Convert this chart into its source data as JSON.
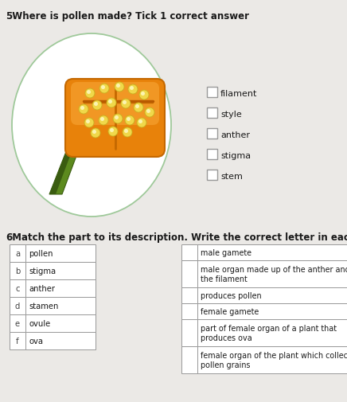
{
  "page_bg": "#ebe9e6",
  "q5_number": "5",
  "q5_text": "  Where is pollen made? Tick 1 correct answer",
  "q5_options": [
    "filament",
    "style",
    "anther",
    "stigma",
    "stem"
  ],
  "q6_number": "6",
  "q6_text": "  Match the part to its description. Write the correct letter in each box",
  "q6_left_labels": [
    "a",
    "b",
    "c",
    "d",
    "e",
    "f"
  ],
  "q6_left_items": [
    "pollen",
    "stigma",
    "anther",
    "stamen",
    "ovule",
    "ova"
  ],
  "q6_right_items": [
    "male gamete",
    "male organ made up of the anther and\nthe filament",
    "produces pollen",
    "female gamete",
    "part of female organ of a plant that\nproduces ova",
    "female organ of the plant which collects\npollen grains"
  ],
  "circle_edge_color": "#9fc99a",
  "anther_orange": "#e8820a",
  "anther_dark": "#c46800",
  "anther_light": "#f5a030",
  "anther_top_dark": "#b85a00",
  "pollen_yellow": "#f0d84a",
  "pollen_yellow2": "#c8b020",
  "stem_green": "#5c8a1e",
  "stem_dark_green": "#3a5c10",
  "table_border": "#999999",
  "text_color": "#1a1a1a",
  "label_color": "#444444",
  "checkbox_border": "#999999",
  "font_size_q": 8.5,
  "font_size_options": 8,
  "font_size_table": 7.2
}
